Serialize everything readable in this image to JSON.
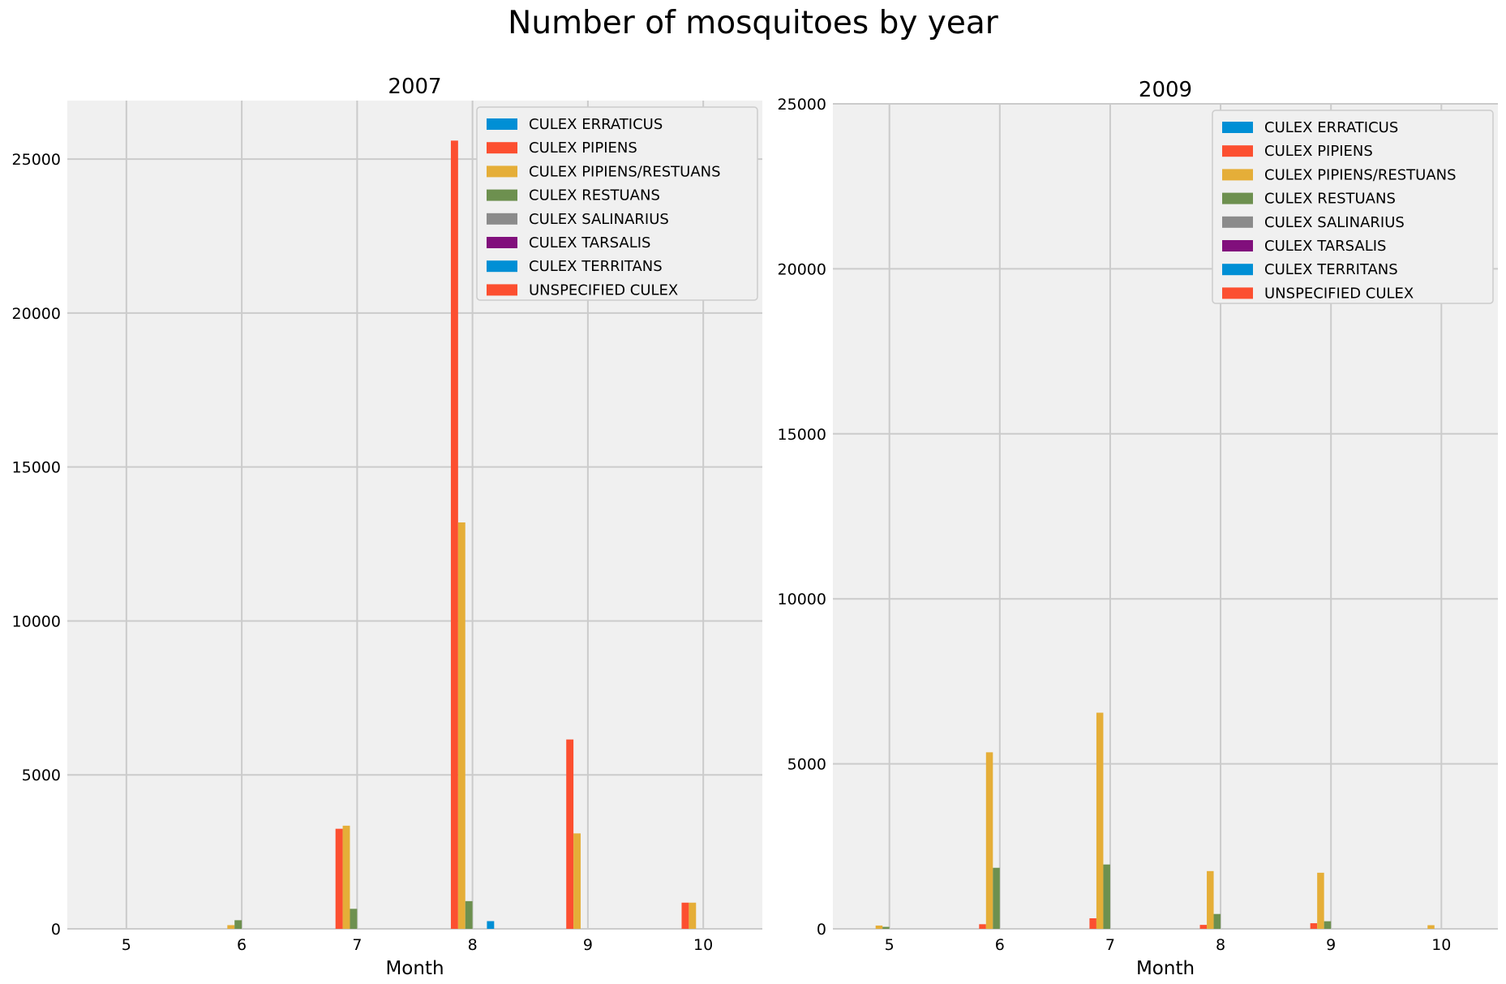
{
  "figure": {
    "title": "Number of mosquitoes by year"
  },
  "chart_data": [
    {
      "type": "bar",
      "title": "2007",
      "xlabel": "Month",
      "ylabel": "",
      "categories": [
        "5",
        "6",
        "7",
        "8",
        "9",
        "10"
      ],
      "ylim": [
        0,
        26900
      ],
      "yticks": [
        0,
        5000,
        10000,
        15000,
        20000,
        25000
      ],
      "grid": true,
      "legend_position": "top-right",
      "series": [
        {
          "name": "CULEX ERRATICUS",
          "color": "#008fd5",
          "values": [
            0,
            0,
            0,
            0,
            0,
            0
          ]
        },
        {
          "name": "CULEX PIPIENS",
          "color": "#fc4f30",
          "values": [
            0,
            0,
            3250,
            25600,
            6150,
            850
          ]
        },
        {
          "name": "CULEX PIPIENS/RESTUANS",
          "color": "#e5ae38",
          "values": [
            0,
            120,
            3350,
            13200,
            3100,
            850
          ]
        },
        {
          "name": "CULEX RESTUANS",
          "color": "#6d904f",
          "values": [
            0,
            280,
            650,
            900,
            0,
            0
          ]
        },
        {
          "name": "CULEX SALINARIUS",
          "color": "#8b8b8b",
          "values": [
            0,
            0,
            0,
            0,
            0,
            0
          ]
        },
        {
          "name": "CULEX TARSALIS",
          "color": "#810f7c",
          "values": [
            0,
            0,
            0,
            0,
            0,
            0
          ]
        },
        {
          "name": "CULEX TERRITANS",
          "color": "#008fd5",
          "values": [
            0,
            0,
            0,
            250,
            0,
            0
          ]
        },
        {
          "name": "UNSPECIFIED CULEX",
          "color": "#fc4f30",
          "values": [
            0,
            0,
            0,
            0,
            0,
            0
          ]
        }
      ]
    },
    {
      "type": "bar",
      "title": "2009",
      "xlabel": "Month",
      "ylabel": "",
      "categories": [
        "5",
        "6",
        "7",
        "8",
        "9",
        "10"
      ],
      "ylim": [
        0,
        25000
      ],
      "yticks": [
        0,
        5000,
        10000,
        15000,
        20000,
        25000
      ],
      "grid": true,
      "legend_position": "top-right",
      "series": [
        {
          "name": "CULEX ERRATICUS",
          "color": "#008fd5",
          "values": [
            0,
            0,
            0,
            0,
            0,
            0
          ]
        },
        {
          "name": "CULEX PIPIENS",
          "color": "#fc4f30",
          "values": [
            0,
            140,
            320,
            120,
            170,
            0
          ]
        },
        {
          "name": "CULEX PIPIENS/RESTUANS",
          "color": "#e5ae38",
          "values": [
            100,
            5350,
            6550,
            1750,
            1700,
            110
          ]
        },
        {
          "name": "CULEX RESTUANS",
          "color": "#6d904f",
          "values": [
            60,
            1850,
            1950,
            450,
            230,
            0
          ]
        },
        {
          "name": "CULEX SALINARIUS",
          "color": "#8b8b8b",
          "values": [
            0,
            0,
            0,
            0,
            0,
            0
          ]
        },
        {
          "name": "CULEX TARSALIS",
          "color": "#810f7c",
          "values": [
            0,
            0,
            0,
            0,
            0,
            0
          ]
        },
        {
          "name": "CULEX TERRITANS",
          "color": "#008fd5",
          "values": [
            0,
            0,
            0,
            0,
            0,
            0
          ]
        },
        {
          "name": "UNSPECIFIED CULEX",
          "color": "#fc4f30",
          "values": [
            0,
            0,
            0,
            0,
            0,
            0
          ]
        }
      ]
    }
  ]
}
